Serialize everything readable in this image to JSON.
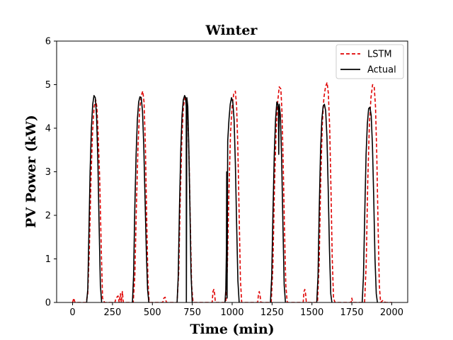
{
  "chart_data": {
    "type": "line",
    "title": "Winter",
    "xlabel": "Time (min)",
    "ylabel": "PV Power (kW)",
    "xlim": [
      -100,
      2100
    ],
    "ylim": [
      0,
      6
    ],
    "xticks": [
      0,
      250,
      500,
      750,
      1000,
      1250,
      1500,
      1750,
      2000
    ],
    "yticks": [
      0,
      1,
      2,
      3,
      4,
      5,
      6
    ],
    "grid": false,
    "legend_position": "top-right",
    "series": [
      {
        "name": "LSTM",
        "color": "#e00000",
        "style": "dashed",
        "points": [
          [
            0,
            0
          ],
          [
            8,
            0.1
          ],
          [
            15,
            0
          ],
          [
            85,
            0
          ],
          [
            95,
            0.2
          ],
          [
            105,
            1.2
          ],
          [
            115,
            2.8
          ],
          [
            125,
            3.9
          ],
          [
            135,
            4.5
          ],
          [
            145,
            4.65
          ],
          [
            152,
            4.5
          ],
          [
            160,
            3.9
          ],
          [
            170,
            2.8
          ],
          [
            180,
            1.2
          ],
          [
            188,
            0.1
          ],
          [
            200,
            0
          ],
          [
            265,
            0
          ],
          [
            272,
            0.1
          ],
          [
            285,
            0.15
          ],
          [
            292,
            0
          ],
          [
            300,
            0.2
          ],
          [
            305,
            0
          ],
          [
            312,
            0.25
          ],
          [
            318,
            0
          ],
          [
            380,
            0
          ],
          [
            390,
            0.6
          ],
          [
            400,
            2.2
          ],
          [
            410,
            3.6
          ],
          [
            420,
            4.4
          ],
          [
            430,
            4.75
          ],
          [
            440,
            4.85
          ],
          [
            448,
            4.6
          ],
          [
            456,
            3.6
          ],
          [
            464,
            2.0
          ],
          [
            472,
            0.5
          ],
          [
            480,
            0
          ],
          [
            565,
            0
          ],
          [
            572,
            0.1
          ],
          [
            580,
            0.12
          ],
          [
            588,
            0
          ],
          [
            655,
            0
          ],
          [
            665,
            0.7
          ],
          [
            675,
            2.4
          ],
          [
            685,
            3.8
          ],
          [
            695,
            4.5
          ],
          [
            705,
            4.7
          ],
          [
            715,
            4.7
          ],
          [
            722,
            4.3
          ],
          [
            730,
            3.3
          ],
          [
            738,
            1.8
          ],
          [
            746,
            0.4
          ],
          [
            755,
            0
          ],
          [
            875,
            0
          ],
          [
            880,
            0.25
          ],
          [
            885,
            0.3
          ],
          [
            890,
            0.2
          ],
          [
            895,
            0
          ],
          [
            960,
            0
          ],
          [
            970,
            0.8
          ],
          [
            980,
            2.6
          ],
          [
            990,
            3.9
          ],
          [
            1000,
            4.5
          ],
          [
            1010,
            4.8
          ],
          [
            1020,
            4.85
          ],
          [
            1028,
            4.5
          ],
          [
            1036,
            3.5
          ],
          [
            1044,
            2.0
          ],
          [
            1052,
            0.5
          ],
          [
            1060,
            0
          ],
          [
            1160,
            0
          ],
          [
            1165,
            0.2
          ],
          [
            1170,
            0.25
          ],
          [
            1175,
            0.15
          ],
          [
            1180,
            0
          ],
          [
            1245,
            0
          ],
          [
            1255,
            0.8
          ],
          [
            1265,
            2.6
          ],
          [
            1275,
            3.9
          ],
          [
            1285,
            4.6
          ],
          [
            1295,
            4.95
          ],
          [
            1305,
            4.9
          ],
          [
            1312,
            4.4
          ],
          [
            1320,
            3.2
          ],
          [
            1328,
            1.7
          ],
          [
            1336,
            0.4
          ],
          [
            1345,
            0
          ],
          [
            1445,
            0
          ],
          [
            1450,
            0.25
          ],
          [
            1455,
            0.3
          ],
          [
            1460,
            0.2
          ],
          [
            1465,
            0
          ],
          [
            1535,
            0
          ],
          [
            1545,
            0.9
          ],
          [
            1555,
            2.8
          ],
          [
            1565,
            4.1
          ],
          [
            1575,
            4.7
          ],
          [
            1585,
            4.95
          ],
          [
            1595,
            5.05
          ],
          [
            1603,
            4.8
          ],
          [
            1611,
            4.0
          ],
          [
            1619,
            2.6
          ],
          [
            1627,
            1.0
          ],
          [
            1635,
            0.1
          ],
          [
            1645,
            0
          ],
          [
            1745,
            0
          ],
          [
            1750,
            0.1
          ],
          [
            1755,
            0
          ],
          [
            1830,
            0
          ],
          [
            1840,
            0.9
          ],
          [
            1850,
            2.8
          ],
          [
            1860,
            4.1
          ],
          [
            1870,
            4.7
          ],
          [
            1880,
            5.0
          ],
          [
            1890,
            4.95
          ],
          [
            1898,
            4.5
          ],
          [
            1906,
            3.4
          ],
          [
            1914,
            1.8
          ],
          [
            1922,
            0.4
          ],
          [
            1930,
            0
          ],
          [
            1945,
            0.05
          ],
          [
            1960,
            0
          ],
          [
            2000,
            0
          ]
        ]
      },
      {
        "name": "Actual",
        "color": "#000000",
        "style": "solid",
        "points": [
          [
            0,
            0
          ],
          [
            88,
            0
          ],
          [
            95,
            0.3
          ],
          [
            102,
            1.5
          ],
          [
            110,
            3.0
          ],
          [
            118,
            4.0
          ],
          [
            126,
            4.55
          ],
          [
            134,
            4.75
          ],
          [
            142,
            4.7
          ],
          [
            150,
            4.3
          ],
          [
            158,
            3.3
          ],
          [
            166,
            1.8
          ],
          [
            174,
            0.4
          ],
          [
            182,
            0
          ],
          [
            2000,
            0
          ]
        ],
        "segments": [
          [
            [
              88,
              0
            ],
            [
              95,
              0.3
            ],
            [
              102,
              1.5
            ],
            [
              110,
              3.0
            ],
            [
              118,
              4.0
            ],
            [
              126,
              4.55
            ],
            [
              134,
              4.75
            ],
            [
              142,
              4.7
            ],
            [
              150,
              4.3
            ],
            [
              158,
              3.3
            ],
            [
              166,
              1.8
            ],
            [
              174,
              0.4
            ],
            [
              182,
              0
            ]
          ],
          [
            [
              375,
              0
            ],
            [
              382,
              0.6
            ],
            [
              390,
              2.2
            ],
            [
              398,
              3.4
            ],
            [
              406,
              4.2
            ],
            [
              414,
              4.6
            ],
            [
              422,
              4.72
            ],
            [
              430,
              4.7
            ],
            [
              438,
              4.4
            ],
            [
              446,
              3.6
            ],
            [
              454,
              2.4
            ],
            [
              462,
              1.2
            ],
            [
              470,
              0.3
            ],
            [
              478,
              0
            ]
          ],
          [
            [
              655,
              0
            ],
            [
              662,
              0.6
            ],
            [
              670,
              2.2
            ],
            [
              678,
              3.5
            ],
            [
              686,
              4.3
            ],
            [
              694,
              4.65
            ],
            [
              702,
              4.75
            ],
            [
              708,
              4.7
            ],
            [
              712,
              4.5
            ],
            [
              713,
              0
            ],
            [
              716,
              4.7
            ],
            [
              722,
              4.5
            ],
            [
              728,
              3.6
            ],
            [
              735,
              2.2
            ],
            [
              742,
              0.7
            ],
            [
              750,
              0
            ]
          ],
          [
            [
              955,
              0
            ],
            [
              960,
              0.3
            ],
            [
              964,
              1.2
            ],
            [
              966,
              3.0
            ],
            [
              968,
              0.1
            ],
            [
              972,
              3.7
            ],
            [
              980,
              4.2
            ],
            [
              988,
              4.55
            ],
            [
              996,
              4.7
            ],
            [
              1004,
              4.6
            ],
            [
              1012,
              4.2
            ],
            [
              1020,
              3.2
            ],
            [
              1028,
              1.8
            ],
            [
              1036,
              0.5
            ],
            [
              1044,
              0
            ]
          ],
          [
            [
              1240,
              0
            ],
            [
              1248,
              0.6
            ],
            [
              1256,
              2.1
            ],
            [
              1264,
              3.4
            ],
            [
              1272,
              4.2
            ],
            [
              1280,
              4.6
            ],
            [
              1286,
              4.55
            ],
            [
              1290,
              4.4
            ],
            [
              1292,
              3.4
            ],
            [
              1295,
              4.55
            ],
            [
              1302,
              4.3
            ],
            [
              1310,
              3.3
            ],
            [
              1318,
              1.8
            ],
            [
              1326,
              0.4
            ],
            [
              1334,
              0
            ]
          ],
          [
            [
              1530,
              0
            ],
            [
              1538,
              0.6
            ],
            [
              1546,
              2.2
            ],
            [
              1554,
              3.5
            ],
            [
              1562,
              4.2
            ],
            [
              1570,
              4.5
            ],
            [
              1578,
              4.55
            ],
            [
              1586,
              4.4
            ],
            [
              1594,
              3.8
            ],
            [
              1602,
              2.6
            ],
            [
              1610,
              1.2
            ],
            [
              1618,
              0.2
            ],
            [
              1625,
              0
            ]
          ],
          [
            [
              1815,
              0
            ],
            [
              1823,
              0.6
            ],
            [
              1831,
              2.1
            ],
            [
              1839,
              3.4
            ],
            [
              1847,
              4.1
            ],
            [
              1855,
              4.45
            ],
            [
              1863,
              4.48
            ],
            [
              1871,
              4.3
            ],
            [
              1879,
              3.6
            ],
            [
              1887,
              2.4
            ],
            [
              1895,
              1.0
            ],
            [
              1903,
              0.2
            ],
            [
              1910,
              0
            ]
          ]
        ]
      }
    ]
  }
}
